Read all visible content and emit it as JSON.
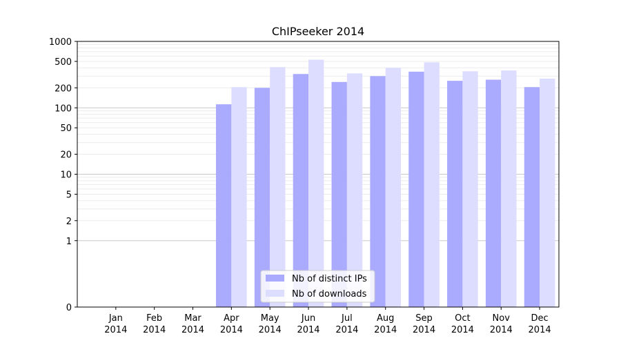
{
  "chart_data": {
    "type": "bar",
    "title": "ChIPseeker 2014",
    "xlabel": "",
    "ylabel": "",
    "yscale": "symlog",
    "ylim": [
      0,
      1000
    ],
    "categories": [
      {
        "month": "Jan",
        "year": "2014"
      },
      {
        "month": "Feb",
        "year": "2014"
      },
      {
        "month": "Mar",
        "year": "2014"
      },
      {
        "month": "Apr",
        "year": "2014"
      },
      {
        "month": "May",
        "year": "2014"
      },
      {
        "month": "Jun",
        "year": "2014"
      },
      {
        "month": "Jul",
        "year": "2014"
      },
      {
        "month": "Aug",
        "year": "2014"
      },
      {
        "month": "Sep",
        "year": "2014"
      },
      {
        "month": "Oct",
        "year": "2014"
      },
      {
        "month": "Nov",
        "year": "2014"
      },
      {
        "month": "Dec",
        "year": "2014"
      }
    ],
    "yticks": [
      0,
      1,
      2,
      5,
      10,
      20,
      50,
      100,
      200,
      500,
      1000
    ],
    "series": [
      {
        "name": "Nb of distinct IPs",
        "color": "#aaaaff",
        "values": [
          0,
          0,
          0,
          113,
          200,
          323,
          245,
          300,
          350,
          255,
          265,
          205
        ]
      },
      {
        "name": "Nb of downloads",
        "color": "#ddddff",
        "values": [
          0,
          0,
          0,
          205,
          410,
          530,
          330,
          400,
          485,
          355,
          365,
          275
        ]
      }
    ],
    "grid": true,
    "legend": "lower-center"
  }
}
